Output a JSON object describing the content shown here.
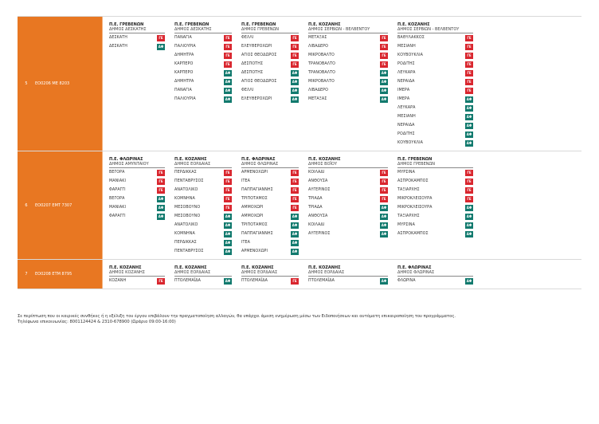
{
  "rows": [
    {
      "num": "5",
      "route": "ΕΟ0206 ΜΕ 8203",
      "columns": [
        {
          "header_a": "Π.Ε. ΓΡΕΒΕΝΩΝ",
          "header_b": "ΔΗΜΟΣ ΔΕΣΚΑΤΗΣ",
          "stops": [
            {
              "name": "ΔΕΣΚΑΤΗ",
              "badge": "ΓΕ"
            },
            {
              "name": "ΔΕΣΚΑΤΗ",
              "badge": "ΑΦ"
            }
          ]
        },
        {
          "header_a": "Π.Ε. ΓΡΕΒΕΝΩΝ",
          "header_b": "ΔΗΜΟΣ ΔΕΣΚΑΤΗΣ",
          "stops": [
            {
              "name": "ΠΑΝΑΓΙΑ",
              "badge": "ΓΕ"
            },
            {
              "name": "ΠΑΛΙΟΥΡΙΑ",
              "badge": "ΓΕ"
            },
            {
              "name": "ΔΗΜΗΤΡΑ",
              "badge": "ΓΕ"
            },
            {
              "name": "ΚΑΡΠΕΡΟ",
              "badge": "ΓΕ"
            },
            {
              "name": "ΚΑΡΠΕΡΟ",
              "badge": "ΑΦ"
            },
            {
              "name": "ΔΗΜΗΤΡΑ",
              "badge": "ΑΦ"
            },
            {
              "name": "ΠΑΝΑΓΙΑ",
              "badge": "ΑΦ"
            },
            {
              "name": "ΠΑΛΙΟΥΡΙΑ",
              "badge": "ΑΦ"
            }
          ]
        },
        {
          "header_a": "Π.Ε. ΓΡΕΒΕΝΩΝ",
          "header_b": "ΔΗΜΟΣ ΓΡΕΒΕΝΩΝ",
          "stops": [
            {
              "name": "ΦΕΛΛΙ",
              "badge": "ΓΕ"
            },
            {
              "name": "ΕΛΕΥΘΕΡΟΧΩΡΙ",
              "badge": "ΓΕ"
            },
            {
              "name": "ΑΓΙΟΣ ΘΕΟΔΩΡΟΣ",
              "badge": "ΓΕ"
            },
            {
              "name": "ΔΕΣΠΟΤΗΣ",
              "badge": "ΓΕ"
            },
            {
              "name": "ΔΕΣΠΟΤΗΣ",
              "badge": "ΑΦ"
            },
            {
              "name": "ΑΓΙΟΣ ΘΕΟΔΩΡΟΣ",
              "badge": "ΑΦ"
            },
            {
              "name": "ΦΕΛΛΙ",
              "badge": "ΑΦ"
            },
            {
              "name": "ΕΛΕΥΘΕΡΟΧΩΡΙ",
              "badge": "ΑΦ"
            }
          ]
        },
        {
          "header_a": "Π.Ε. ΚΟΖΑΝΗΣ",
          "header_b": "ΔΗΜΟΣ ΣΕΡΒΙΩΝ - ΒΕΛΒΕΝΤΟΥ",
          "stops": [
            {
              "name": "ΜΕΤΑΞΑΣ",
              "badge": "ΓΕ"
            },
            {
              "name": "ΛΙΒΑΔΕΡΟ",
              "badge": "ΓΕ"
            },
            {
              "name": "ΜΙΚΡΟΒΑΛΤΟ",
              "badge": "ΓΕ"
            },
            {
              "name": "ΤΡΑΝΟΒΑΛΤΟ",
              "badge": "ΓΕ"
            },
            {
              "name": "ΤΡΑΝΟΒΑΛΤΟ",
              "badge": "ΑΦ"
            },
            {
              "name": "ΜΙΚΡΟΒΑΛΤΟ",
              "badge": "ΑΦ"
            },
            {
              "name": "ΛΙΒΑΔΕΡΟ",
              "badge": "ΑΦ"
            },
            {
              "name": "ΜΕΤΑΞΑΣ",
              "badge": "ΑΦ"
            }
          ]
        },
        {
          "header_a": "Π.Ε. ΚΟΖΑΝΗΣ",
          "header_b": "ΔΗΜΟΣ ΣΕΡΒΙΩΝ - ΒΕΛΒΕΝΤΟΥ",
          "stops": [
            {
              "name": "ΒΑΘΥΛΑΚΚΟΣ",
              "badge": "ΓΕ"
            },
            {
              "name": "ΜΕΣΙΑΝΗ",
              "badge": "ΓΕ"
            },
            {
              "name": "ΚΟΥΒΟΥΚΛΙΑ",
              "badge": "ΓΕ"
            },
            {
              "name": "ΡΟΔΙΤΗΣ",
              "badge": "ΓΕ"
            },
            {
              "name": "ΛΕΥΚΑΡΑ",
              "badge": "ΓΕ"
            },
            {
              "name": "ΝΕΡΑΙΔΑ",
              "badge": "ΓΕ"
            },
            {
              "name": "ΙΜΕΡΑ",
              "badge": "ΓΕ"
            },
            {
              "name": "ΙΜΕΡΑ",
              "badge": "ΑΦ"
            },
            {
              "name": "ΛΕΥΚΑΡΑ",
              "badge": "ΑΦ"
            },
            {
              "name": "ΜΕΣΙΑΝΗ",
              "badge": "ΑΦ"
            },
            {
              "name": "ΝΕΡΑΙΔΑ",
              "badge": "ΑΦ"
            },
            {
              "name": "ΡΟΔΙΤΗΣ",
              "badge": "ΑΦ"
            },
            {
              "name": "ΚΟΥΒΟΥΚΛΙΑ",
              "badge": "ΑΦ"
            }
          ]
        }
      ]
    },
    {
      "num": "6",
      "route": "ΕΟ0207 ΕΜΤ 7307",
      "columns": [
        {
          "header_a": "Π.Ε. ΦΛΩΡΙΝΑΣ",
          "header_b": "ΔΗΜΟΣ ΑΜΥΝΤΑΙΟΥ",
          "stops": [
            {
              "name": "ΒΕΓΟΡΑ",
              "badge": "ΓΕ"
            },
            {
              "name": "ΜΑΝΙΑΚΙ",
              "badge": "ΓΕ"
            },
            {
              "name": "ΦΑΡΑΓΓΙ",
              "badge": "ΓΕ"
            },
            {
              "name": "ΒΕΓΟΡΑ",
              "badge": "ΑΦ"
            },
            {
              "name": "ΜΑΝΙΑΚΙ",
              "badge": "ΑΦ"
            },
            {
              "name": "ΦΑΡΑΓΓΙ",
              "badge": "ΑΦ"
            }
          ]
        },
        {
          "header_a": "Π.Ε. ΚΟΖΑΝΗΣ",
          "header_b": "ΔΗΜΟΣ ΕΟΡΔΑΙΑΣ",
          "stops": [
            {
              "name": "ΠΕΡΔΙΚΚΑΣ",
              "badge": "ΓΕ"
            },
            {
              "name": "ΠΕΝΤΑΒΡΥΣΟΣ",
              "badge": "ΓΕ"
            },
            {
              "name": "ΑΝΑΤΟΛΙΚΟ",
              "badge": "ΓΕ"
            },
            {
              "name": "ΚΟΜΝΗΝΑ",
              "badge": "ΓΕ"
            },
            {
              "name": "ΜΕΣΟΒΟΥΝΟ",
              "badge": "ΓΕ"
            },
            {
              "name": "ΜΕΣΟΒΟΥΝΟ",
              "badge": "ΑΦ"
            },
            {
              "name": "ΑΝΑΤΟΛΙΚΟ",
              "badge": "ΑΦ"
            },
            {
              "name": "ΚΟΜΝΗΝΑ",
              "badge": "ΑΦ"
            },
            {
              "name": "ΠΕΡΔΙΚΚΑΣ",
              "badge": "ΑΦ"
            },
            {
              "name": "ΠΕΝΤΑΒΡΥΣΟΣ",
              "badge": "ΑΦ"
            }
          ]
        },
        {
          "header_a": "Π.Ε. ΦΛΩΡΙΝΑΣ",
          "header_b": "ΔΗΜΟΣ ΦΛΩΡΙΝΑΣ",
          "stops": [
            {
              "name": "ΑΡΜΕΝΟΧΩΡΙ",
              "badge": "ΓΕ"
            },
            {
              "name": "ΙΤΕΑ",
              "badge": "ΓΕ"
            },
            {
              "name": "ΠΑΠΠΑΓΙΑΝΝΗΣ",
              "badge": "ΓΕ"
            },
            {
              "name": "ΤΡΙΠΟΤΑΜΟΣ",
              "badge": "ΓΕ"
            },
            {
              "name": "ΑΜΜΟΧΩΡΙ",
              "badge": "ΓΕ"
            },
            {
              "name": "ΑΜΜΟΧΩΡΙ",
              "badge": "ΑΦ"
            },
            {
              "name": "ΤΡΙΠΟΤΑΜΟΣ",
              "badge": "ΑΦ"
            },
            {
              "name": "ΠΑΠΠΑΓΙΑΝΝΗΣ",
              "badge": "ΑΦ"
            },
            {
              "name": "ΙΤΕΑ",
              "badge": "ΑΦ"
            },
            {
              "name": "ΑΡΜΕΝΟΧΩΡΙ",
              "badge": "ΑΦ"
            }
          ]
        },
        {
          "header_a": "Π.Ε. ΚΟΖΑΝΗΣ",
          "header_b": "ΔΗΜΟΣ ΒΟΪΟΥ",
          "stops": [
            {
              "name": "ΚΟΙΛΑΔΙ",
              "badge": "ΓΕ"
            },
            {
              "name": "ΑΝΘΟΥΣΑ",
              "badge": "ΓΕ"
            },
            {
              "name": "ΑΥΓΕΡΙΝΟΣ",
              "badge": "ΓΕ"
            },
            {
              "name": "ΤΡΙΑΔΑ",
              "badge": "ΓΕ"
            },
            {
              "name": "ΤΡΙΑΔΑ",
              "badge": "ΑΦ"
            },
            {
              "name": "ΑΝΘΟΥΣΑ",
              "badge": "ΑΦ"
            },
            {
              "name": "ΚΟΙΛΑΔΙ",
              "badge": "ΑΦ"
            },
            {
              "name": "ΑΥΓΕΡΙΝΟΣ",
              "badge": "ΑΦ"
            }
          ]
        },
        {
          "header_a": "Π.Ε. ΓΡΕΒΕΝΩΝ",
          "header_b": "ΔΗΜΟΣ ΓΡΕΒΕΝΩΝ",
          "stops": [
            {
              "name": "ΜΥΡΣΙΝΑ",
              "badge": "ΓΕ"
            },
            {
              "name": "ΑΣΠΡΟΚΑΜΠΟΣ",
              "badge": "ΓΕ"
            },
            {
              "name": "ΤΑΞΙΑΡΧΗΣ",
              "badge": "ΓΕ"
            },
            {
              "name": "ΜΙΚΡΟΚΛΕΙΣΟΥΡΑ",
              "badge": "ΓΕ"
            },
            {
              "name": "ΜΙΚΡΟΚΛΕΙΣΟΥΡΑ",
              "badge": "ΑΦ"
            },
            {
              "name": "ΤΑΞΙΑΡΧΗΣ",
              "badge": "ΑΦ"
            },
            {
              "name": "ΜΥΡΣΙΝΑ",
              "badge": "ΑΦ"
            },
            {
              "name": "ΑΣΠΡΟΚΑΜΠΟΣ",
              "badge": "ΑΦ"
            }
          ]
        }
      ]
    },
    {
      "num": "7",
      "route": "ΕΟ0208 ΕΤΜ 8795",
      "columns": [
        {
          "header_a": "Π.Ε. ΚΟΖΑΝΗΣ",
          "header_b": "ΔΗΜΟΣ ΚΟΖΑΝΗΣ",
          "stops": [
            {
              "name": "ΚΟΖΑΝΗ",
              "badge": "ΓΕ"
            }
          ]
        },
        {
          "header_a": "Π.Ε. ΚΟΖΑΝΗΣ",
          "header_b": "ΔΗΜΟΣ ΕΟΡΔΑΙΑΣ",
          "stops": [
            {
              "name": "ΠΤΟΛΕΜΑΪΔΑ",
              "badge": "ΑΦ"
            }
          ]
        },
        {
          "header_a": "Π.Ε. ΚΟΖΑΝΗΣ",
          "header_b": "ΔΗΜΟΣ ΕΟΡΔΑΙΑΣ",
          "stops": [
            {
              "name": "ΠΤΟΛΕΜΑΪΔΑ",
              "badge": "ΓΕ"
            }
          ]
        },
        {
          "header_a": "Π.Ε. ΚΟΖΑΝΗΣ",
          "header_b": "ΔΗΜΟΣ ΕΟΡΔΑΙΑΣ",
          "stops": [
            {
              "name": "ΠΤΟΛΕΜΑΪΔΑ",
              "badge": "ΑΦ"
            }
          ]
        },
        {
          "header_a": "Π.Ε. ΦΛΩΡΙΝΑΣ",
          "header_b": "ΔΗΜΟΣ ΦΛΩΡΙΝΑΣ",
          "stops": [
            {
              "name": "ΦΛΩΡΙΝΑ",
              "badge": "ΑΦ"
            }
          ]
        }
      ]
    }
  ],
  "note": {
    "line1": "Σε περίπτωση που οι καιρικές συνθήκες ή η εξέλιξη του έργου επιβάλουν την πραγματοποίηση αλλαγών, θα υπάρχει άμεση ενημέρωση μέσω των Ειδοποιήσεων και αυτόματη επικαιροποίηση του προγράμματος.",
    "line2": "Τηλέφωνα επικοινωνίας: 8001124424 & 2310-678900 (Ωράριο 09:00-16:00)"
  },
  "colors": {
    "route_bg": "#e87722",
    "badge_ge": "#d9262e",
    "badge_af": "#127a6e"
  }
}
